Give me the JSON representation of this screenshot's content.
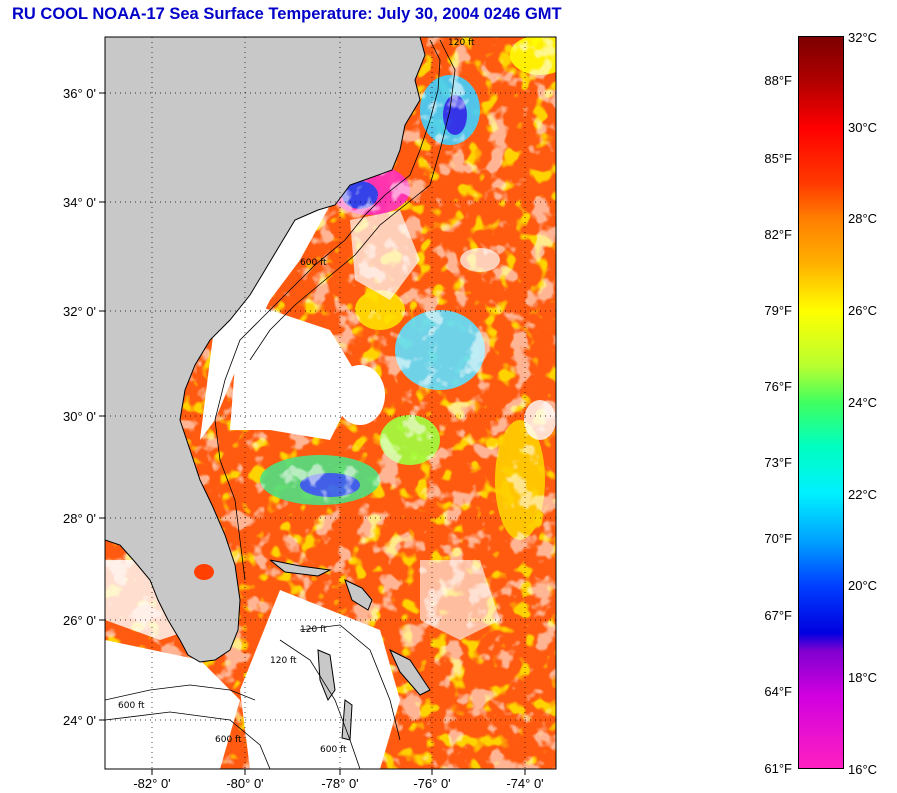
{
  "title": "RU COOL  NOAA-17  Sea Surface Temperature:  July 30, 2004 0246 GMT",
  "lat_labels": [
    "36° 0'",
    "34° 0'",
    "32° 0'",
    "30° 0'",
    "28° 0'",
    "26° 0'",
    "24° 0'"
  ],
  "lon_labels": [
    "-82° 0'",
    "-80° 0'",
    "-78° 0'",
    "-76° 0'",
    "-74° 0'"
  ],
  "contour_labels": [
    "120 ft",
    "600 ft",
    "120 ft",
    "600 ft",
    "600 ft",
    "120 ft",
    "600 ft"
  ],
  "colorbar": {
    "fahrenheit": [
      "88°F",
      "85°F",
      "82°F",
      "79°F",
      "76°F",
      "73°F",
      "70°F",
      "67°F",
      "64°F",
      "61°F"
    ],
    "celsius": [
      "32°C",
      "30°C",
      "28°C",
      "26°C",
      "24°C",
      "22°C",
      "20°C",
      "18°C",
      "16°C"
    ]
  },
  "colors": {
    "title": "#0000c8",
    "land": "#c8c8c8",
    "cloud": "#ffffff",
    "warm": "#ff4a00",
    "mid": "#ff9000"
  }
}
